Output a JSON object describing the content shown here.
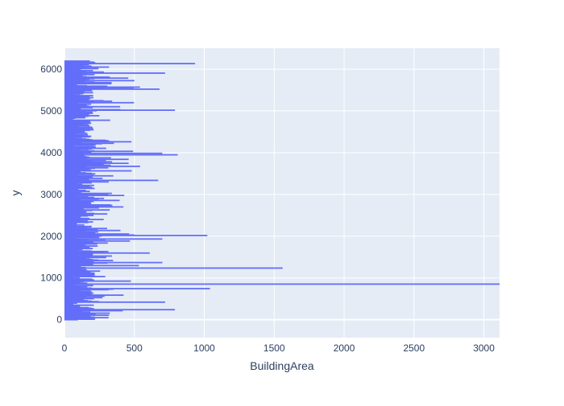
{
  "chart_data": {
    "type": "bar",
    "orientation": "horizontal",
    "title": "",
    "xlabel": "BuildingArea",
    "ylabel": "y",
    "xlim": [
      0,
      3112
    ],
    "ylim": [
      -430,
      6500
    ],
    "x_ticks": [
      0,
      500,
      1000,
      1500,
      2000,
      2500,
      3000
    ],
    "y_ticks": [
      0,
      1000,
      2000,
      3000,
      4000,
      5000,
      6000
    ],
    "y_range": [
      0,
      6196
    ],
    "grid": true,
    "legend": "none",
    "colors": {
      "bar": "#636efa",
      "plot_bg": "#e5ecf6",
      "grid": "#ffffff",
      "text": "#2a3f5f"
    },
    "outliers": [
      {
        "y": 850,
        "value": 3112
      },
      {
        "y": 1240,
        "value": 1561
      },
      {
        "y": 2020,
        "value": 1022
      },
      {
        "y": 740,
        "value": 1041
      },
      {
        "y": 6130,
        "value": 934
      },
      {
        "y": 3950,
        "value": 810
      },
      {
        "y": 5020,
        "value": 790
      },
      {
        "y": 240,
        "value": 790
      },
      {
        "y": 1930,
        "value": 700
      },
      {
        "y": 3980,
        "value": 700
      },
      {
        "y": 5900,
        "value": 720
      },
      {
        "y": 1370,
        "value": 700
      },
      {
        "y": 3330,
        "value": 670
      },
      {
        "y": 1600,
        "value": 610
      },
      {
        "y": 5520,
        "value": 680
      },
      {
        "y": 420,
        "value": 720
      }
    ]
  }
}
